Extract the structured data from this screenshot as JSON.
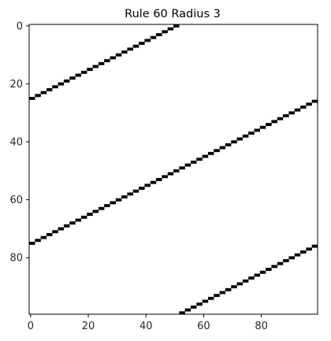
{
  "chart_data": {
    "type": "heatmap",
    "title": "Rule 60 Radius 3",
    "xlabel": "",
    "ylabel": "",
    "x_range": [
      -0.5,
      99.5
    ],
    "y_range": [
      99.5,
      -0.5
    ],
    "x_ticks": [
      0,
      20,
      40,
      60,
      80
    ],
    "y_ticks": [
      0,
      20,
      40,
      60,
      80
    ],
    "grid": false,
    "cmap": "binary",
    "colors": {
      "on": "#000000",
      "off": "#ffffff"
    },
    "rows": 100,
    "cols": 100,
    "stripes": [
      {
        "description": "each black cell pair steps right 2 columns per row up",
        "start_row": 25,
        "start_col": 0,
        "end_row": 0,
        "end_col": 50
      },
      {
        "start_row": 75,
        "start_col": 0,
        "end_row": 26,
        "end_col": 98
      },
      {
        "start_row": 99,
        "start_col": 52,
        "end_row": 76,
        "end_col": 98
      }
    ]
  }
}
